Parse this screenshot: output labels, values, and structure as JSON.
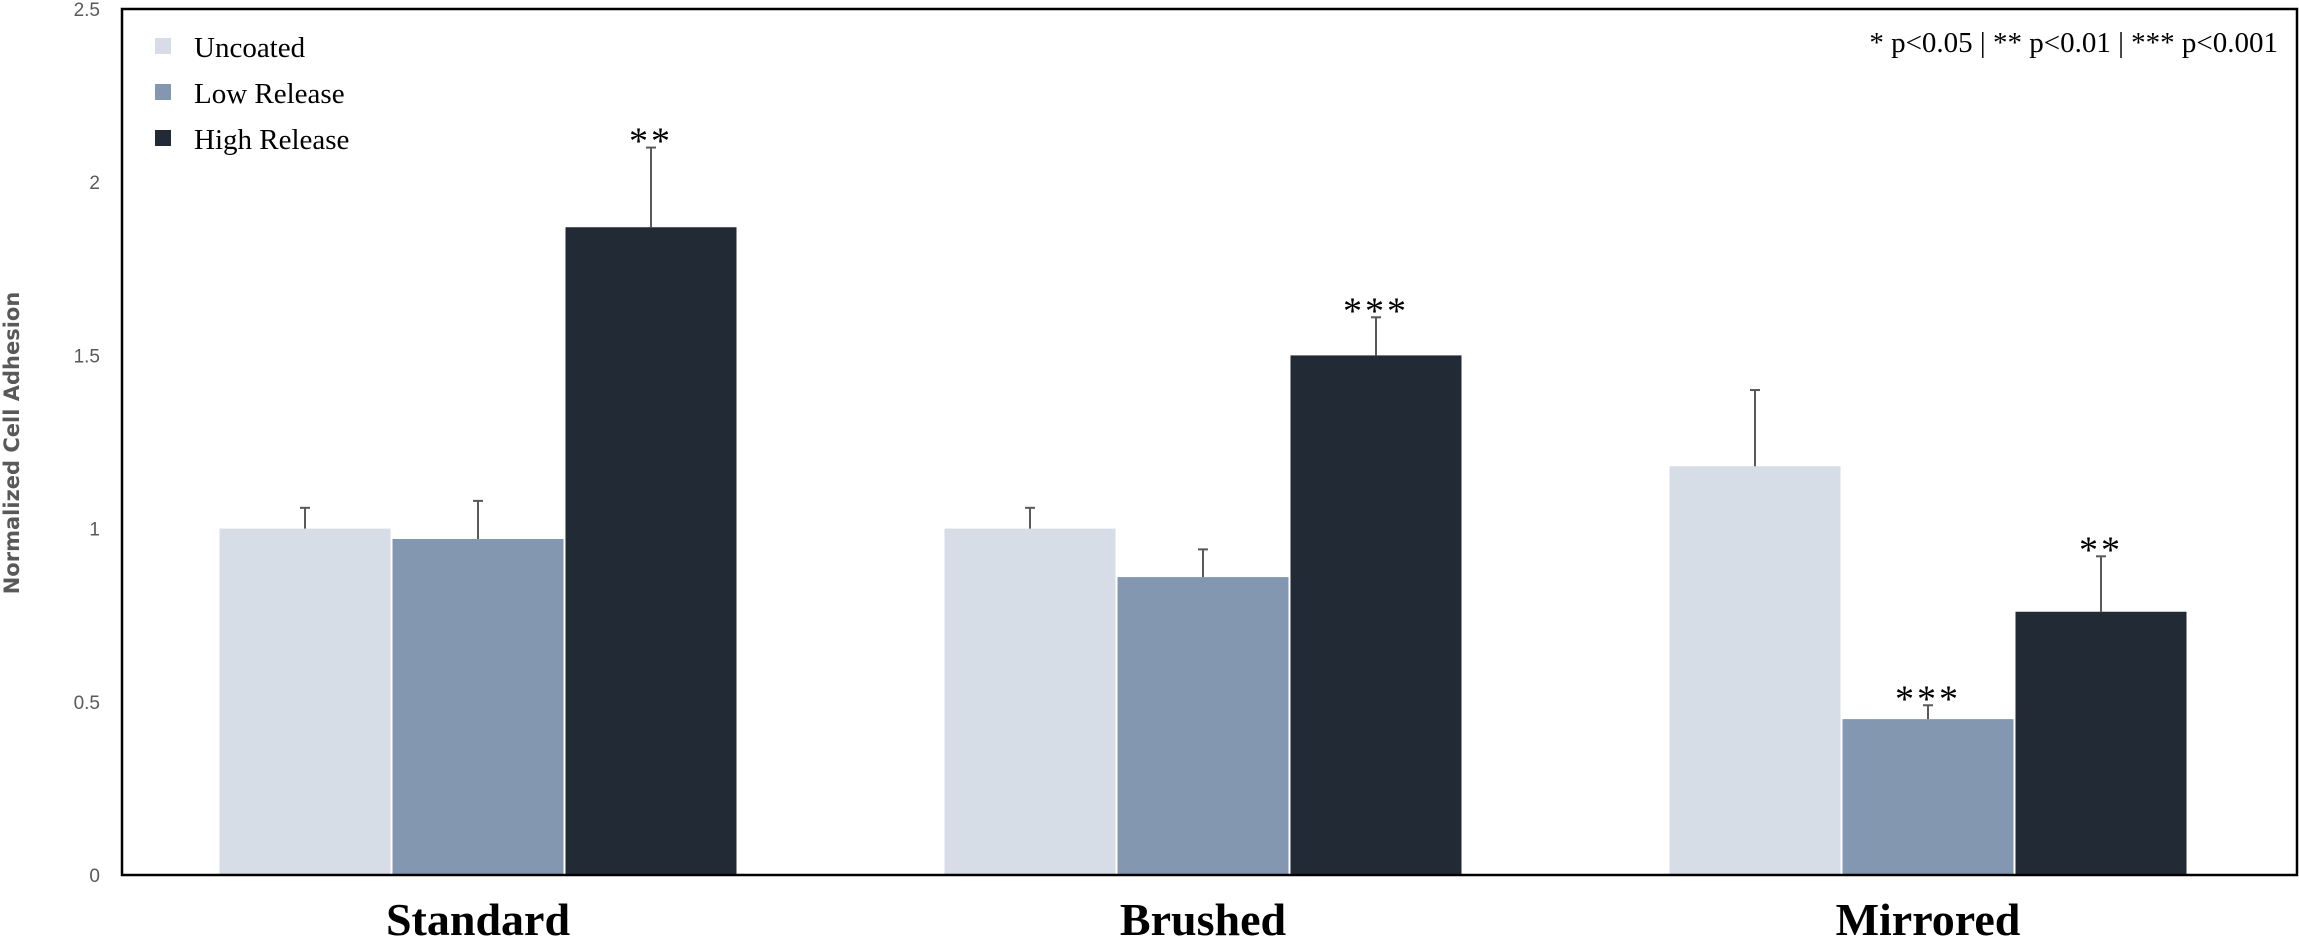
{
  "chart_data": {
    "type": "bar",
    "title": "",
    "xlabel": "",
    "ylabel": "Normalized Cell Adhesion",
    "ylim": [
      0,
      2.5
    ],
    "yticks": [
      "0",
      "0.5",
      "1",
      "1.5",
      "2",
      "2.5"
    ],
    "categories": [
      "Standard",
      "Brushed",
      "Mirrored"
    ],
    "series": [
      {
        "name": "Uncoated",
        "color": "#d6dde6",
        "values": [
          1.0,
          1.0,
          1.18
        ],
        "errors": [
          0.06,
          0.06,
          0.22
        ],
        "significance": [
          "",
          "",
          ""
        ]
      },
      {
        "name": "Low Release",
        "color": "#8497b0",
        "values": [
          0.97,
          0.86,
          0.45
        ],
        "errors": [
          0.11,
          0.08,
          0.04
        ],
        "significance": [
          "",
          "",
          "***"
        ]
      },
      {
        "name": "High Release",
        "color": "#222a35",
        "values": [
          1.87,
          1.5,
          0.76
        ],
        "errors": [
          0.23,
          0.11,
          0.16
        ],
        "significance": [
          "**",
          "***",
          "**"
        ]
      }
    ],
    "legend_position": "top-left",
    "annotation": "* p<0.05 | ** p<0.01 | *** p<0.001",
    "grid": false
  }
}
